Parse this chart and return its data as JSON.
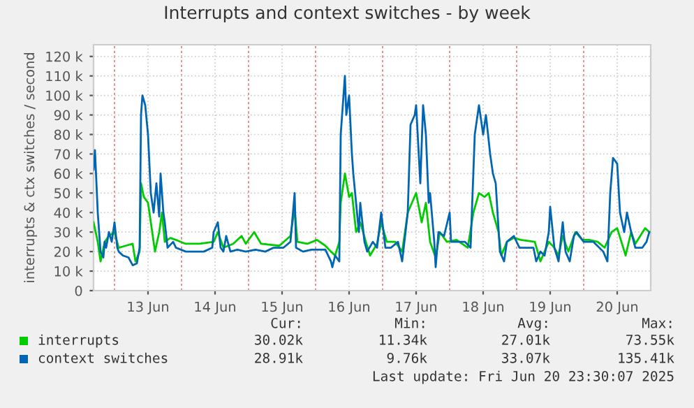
{
  "chart_data": {
    "type": "line",
    "title": "Interrupts and context switches - by week",
    "ylabel": "interrupts & ctx switches / second",
    "legend": "bottom",
    "grid": true,
    "marker": "none",
    "line_style": "solid",
    "xlim": [
      "2025-06-12T16:30",
      "2025-06-21T00:00"
    ],
    "xticks": [
      {
        "value": "2025-06-13T00:00",
        "label": null
      },
      {
        "value": "2025-06-13T12:00",
        "label": "13 Jun"
      },
      {
        "value": "2025-06-14T00:00",
        "label": null
      },
      {
        "value": "2025-06-14T12:00",
        "label": "14 Jun"
      },
      {
        "value": "2025-06-15T00:00",
        "label": null
      },
      {
        "value": "2025-06-15T12:00",
        "label": "15 Jun"
      },
      {
        "value": "2025-06-16T00:00",
        "label": null
      },
      {
        "value": "2025-06-16T12:00",
        "label": "16 Jun"
      },
      {
        "value": "2025-06-17T00:00",
        "label": null
      },
      {
        "value": "2025-06-17T12:00",
        "label": "17 Jun"
      },
      {
        "value": "2025-06-18T00:00",
        "label": null
      },
      {
        "value": "2025-06-18T12:00",
        "label": "18 Jun"
      },
      {
        "value": "2025-06-19T00:00",
        "label": null
      },
      {
        "value": "2025-06-19T12:00",
        "label": "19 Jun"
      },
      {
        "value": "2025-06-20T00:00",
        "label": null
      },
      {
        "value": "2025-06-20T12:00",
        "label": "20 Jun"
      },
      {
        "value": "2025-06-21T00:00",
        "label": null
      }
    ],
    "ylim": [
      0,
      126000
    ],
    "yticks": [
      0,
      {
        "value": 10000,
        "label": "10 k"
      },
      {
        "value": 20000,
        "label": "20 k"
      },
      {
        "value": 30000,
        "label": "30 k"
      },
      {
        "value": 40000,
        "label": "40 k"
      },
      {
        "value": 50000,
        "label": "50 k"
      },
      {
        "value": 60000,
        "label": "60 k"
      },
      {
        "value": 70000,
        "label": "70 k"
      },
      {
        "value": 80000,
        "label": "80 k"
      },
      {
        "value": 90000,
        "label": "90 k"
      },
      {
        "value": 100000,
        "label": "100 k"
      },
      {
        "value": 110000,
        "label": "110 k"
      },
      {
        "value": 120000,
        "label": "120 k"
      }
    ],
    "series": [
      {
        "name": "interrupts",
        "color": "#00cc00",
        "x": [
          "2025-06-12T16:30",
          "2025-06-12T18:00",
          "2025-06-12T19:00",
          "2025-06-12T20:30",
          "2025-06-12T22:00",
          "2025-06-13T00:00",
          "2025-06-13T01:30",
          "2025-06-13T04:00",
          "2025-06-13T06:30",
          "2025-06-13T07:30",
          "2025-06-13T09:00",
          "2025-06-13T09:30",
          "2025-06-13T10:30",
          "2025-06-13T12:00",
          "2025-06-13T13:00",
          "2025-06-13T14:30",
          "2025-06-13T16:00",
          "2025-06-13T17:00",
          "2025-06-13T18:00",
          "2025-06-13T20:00",
          "2025-06-13T22:00",
          "2025-06-14T01:30",
          "2025-06-14T06:30",
          "2025-06-14T11:30",
          "2025-06-14T13:00",
          "2025-06-14T15:00",
          "2025-06-14T18:30",
          "2025-06-14T21:30",
          "2025-06-14T23:00",
          "2025-06-15T02:00",
          "2025-06-15T04:30",
          "2025-06-15T11:00",
          "2025-06-15T15:00",
          "2025-06-15T16:30",
          "2025-06-15T17:30",
          "2025-06-15T21:00",
          "2025-06-16T00:30",
          "2025-06-16T03:30",
          "2025-06-16T05:30",
          "2025-06-16T07:00",
          "2025-06-16T08:30",
          "2025-06-16T09:00",
          "2025-06-16T10:30",
          "2025-06-16T12:00",
          "2025-06-16T13:00",
          "2025-06-16T14:30",
          "2025-06-16T16:00",
          "2025-06-16T18:00",
          "2025-06-16T19:30",
          "2025-06-16T22:00",
          "2025-06-16T23:30",
          "2025-06-17T01:30",
          "2025-06-17T04:30",
          "2025-06-17T07:00",
          "2025-06-17T09:00",
          "2025-06-17T10:30",
          "2025-06-17T12:00",
          "2025-06-17T14:00",
          "2025-06-17T15:30",
          "2025-06-17T17:00",
          "2025-06-17T19:00",
          "2025-06-17T20:30",
          "2025-06-17T23:00",
          "2025-06-18T02:30",
          "2025-06-18T06:30",
          "2025-06-18T08:30",
          "2025-06-18T10:30",
          "2025-06-18T12:30",
          "2025-06-18T14:00",
          "2025-06-18T15:30",
          "2025-06-18T17:30",
          "2025-06-18T18:30",
          "2025-06-18T20:30",
          "2025-06-18T23:00",
          "2025-06-19T01:30",
          "2025-06-19T06:30",
          "2025-06-19T08:30",
          "2025-06-19T10:00",
          "2025-06-19T11:30",
          "2025-06-19T13:30",
          "2025-06-19T15:00",
          "2025-06-19T16:30",
          "2025-06-19T18:30",
          "2025-06-19T21:00",
          "2025-06-19T23:30",
          "2025-06-20T02:00",
          "2025-06-20T05:00",
          "2025-06-20T07:30",
          "2025-06-20T10:00",
          "2025-06-20T12:00",
          "2025-06-20T13:30",
          "2025-06-20T15:00",
          "2025-06-20T17:00",
          "2025-06-20T18:30",
          "2025-06-20T22:00",
          "2025-06-20T23:30"
        ],
        "values": [
          35000,
          25000,
          15000,
          25000,
          28000,
          30000,
          22000,
          23000,
          24000,
          15000,
          20000,
          55000,
          48000,
          45000,
          35000,
          20000,
          30000,
          40000,
          25000,
          27000,
          26000,
          24000,
          24000,
          25000,
          30000,
          22000,
          24000,
          28000,
          24000,
          30000,
          24000,
          23000,
          28000,
          42000,
          25000,
          24000,
          26000,
          23000,
          20000,
          18000,
          25000,
          45000,
          60000,
          48000,
          50000,
          30000,
          35000,
          25000,
          18000,
          24000,
          35000,
          25000,
          25000,
          20000,
          40000,
          45000,
          50000,
          35000,
          45000,
          25000,
          17000,
          30000,
          25000,
          26000,
          22000,
          40000,
          50000,
          48000,
          50000,
          40000,
          30000,
          18000,
          25000,
          27000,
          26000,
          25000,
          15000,
          20000,
          25000,
          22000,
          18000,
          28000,
          20000,
          30000,
          26000,
          26000,
          25000,
          22000,
          30000,
          32000,
          25000,
          18000,
          30000,
          24000,
          32000,
          30000
        ]
      },
      {
        "name": "context switches",
        "color": "#0066b3",
        "x": [
          "2025-06-12T16:30",
          "2025-06-12T17:00",
          "2025-06-12T18:00",
          "2025-06-12T19:00",
          "2025-06-12T20:00",
          "2025-06-12T20:30",
          "2025-06-12T21:00",
          "2025-06-12T22:00",
          "2025-06-12T23:00",
          "2025-06-13T00:00",
          "2025-06-13T01:00",
          "2025-06-13T01:30",
          "2025-06-13T03:00",
          "2025-06-13T05:00",
          "2025-06-13T06:30",
          "2025-06-13T08:00",
          "2025-06-13T09:00",
          "2025-06-13T09:30",
          "2025-06-13T10:00",
          "2025-06-13T11:00",
          "2025-06-13T12:00",
          "2025-06-13T13:00",
          "2025-06-13T14:00",
          "2025-06-13T15:00",
          "2025-06-13T16:00",
          "2025-06-13T16:30",
          "2025-06-13T17:30",
          "2025-06-13T18:00",
          "2025-06-13T19:00",
          "2025-06-13T21:00",
          "2025-06-13T22:00",
          "2025-06-14T01:30",
          "2025-06-14T05:00",
          "2025-06-14T08:00",
          "2025-06-14T11:00",
          "2025-06-14T11:30",
          "2025-06-14T13:00",
          "2025-06-14T14:00",
          "2025-06-14T15:00",
          "2025-06-14T16:00",
          "2025-06-14T17:30",
          "2025-06-14T20:00",
          "2025-06-14T23:00",
          "2025-06-15T02:30",
          "2025-06-15T06:00",
          "2025-06-15T09:00",
          "2025-06-15T12:30",
          "2025-06-15T15:00",
          "2025-06-15T16:30",
          "2025-06-15T17:00",
          "2025-06-15T19:30",
          "2025-06-15T22:30",
          "2025-06-16T03:30",
          "2025-06-16T05:30",
          "2025-06-16T06:00",
          "2025-06-16T07:00",
          "2025-06-16T08:30",
          "2025-06-16T09:00",
          "2025-06-16T10:30",
          "2025-06-16T11:00",
          "2025-06-16T12:00",
          "2025-06-16T13:00",
          "2025-06-16T13:30",
          "2025-06-16T14:30",
          "2025-06-16T15:30",
          "2025-06-16T16:00",
          "2025-06-16T17:30",
          "2025-06-16T18:30",
          "2025-06-16T20:30",
          "2025-06-16T22:00",
          "2025-06-16T23:30",
          "2025-06-17T01:00",
          "2025-06-17T03:00",
          "2025-06-17T05:30",
          "2025-06-17T07:00",
          "2025-06-17T09:00",
          "2025-06-17T10:00",
          "2025-06-17T11:30",
          "2025-06-17T12:00",
          "2025-06-17T13:30",
          "2025-06-17T14:30",
          "2025-06-17T15:30",
          "2025-06-17T16:30",
          "2025-06-17T17:00",
          "2025-06-17T18:30",
          "2025-06-17T19:00",
          "2025-06-17T20:00",
          "2025-06-17T22:00",
          "2025-06-18T00:00",
          "2025-06-18T00:30",
          "2025-06-18T03:00",
          "2025-06-18T05:30",
          "2025-06-18T07:30",
          "2025-06-18T09:00",
          "2025-06-18T10:30",
          "2025-06-18T12:00",
          "2025-06-18T13:00",
          "2025-06-18T14:30",
          "2025-06-18T15:30",
          "2025-06-18T16:30",
          "2025-06-18T18:00",
          "2025-06-18T19:30",
          "2025-06-18T20:30",
          "2025-06-18T23:00",
          "2025-06-19T01:00",
          "2025-06-19T03:30",
          "2025-06-19T06:00",
          "2025-06-19T07:00",
          "2025-06-19T08:30",
          "2025-06-19T10:00",
          "2025-06-19T11:30",
          "2025-06-19T12:00",
          "2025-06-19T13:30",
          "2025-06-19T15:00",
          "2025-06-19T16:30",
          "2025-06-19T17:30",
          "2025-06-19T19:00",
          "2025-06-19T20:30",
          "2025-06-19T21:30",
          "2025-06-20T00:00",
          "2025-06-20T03:30",
          "2025-06-20T07:00",
          "2025-06-20T08:30",
          "2025-06-20T09:30",
          "2025-06-20T10:30",
          "2025-06-20T12:00",
          "2025-06-20T13:00",
          "2025-06-20T14:30",
          "2025-06-20T15:30",
          "2025-06-20T17:00",
          "2025-06-20T18:30",
          "2025-06-20T21:00",
          "2025-06-20T22:30",
          "2025-06-20T23:30"
        ],
        "values": [
          62000,
          72000,
          40000,
          20000,
          17000,
          25000,
          22000,
          30000,
          25000,
          35000,
          22000,
          20000,
          18000,
          17000,
          13000,
          14000,
          22000,
          90000,
          100000,
          95000,
          80000,
          50000,
          40000,
          55000,
          38000,
          60000,
          40000,
          35000,
          22000,
          25000,
          22000,
          20000,
          20000,
          20000,
          22000,
          30000,
          35000,
          22000,
          20000,
          28000,
          20000,
          21000,
          20000,
          21000,
          20000,
          22000,
          22000,
          25000,
          50000,
          22000,
          20000,
          21000,
          21000,
          15000,
          12000,
          18000,
          15000,
          80000,
          110000,
          90000,
          100000,
          70000,
          60000,
          45000,
          30000,
          45000,
          25000,
          20000,
          25000,
          22000,
          40000,
          22000,
          22000,
          25000,
          15000,
          40000,
          85000,
          90000,
          95000,
          55000,
          95000,
          80000,
          45000,
          50000,
          25000,
          12000,
          30000,
          28000,
          40000,
          25000,
          25000,
          25000,
          22000,
          80000,
          95000,
          80000,
          90000,
          70000,
          60000,
          55000,
          20000,
          15000,
          25000,
          28000,
          22000,
          22000,
          22000,
          15000,
          20000,
          18000,
          30000,
          43000,
          22000,
          15000,
          35000,
          20000,
          15000,
          28000,
          30000,
          25000,
          25000,
          20000,
          15000,
          50000,
          68000,
          65000,
          40000,
          30000,
          40000,
          30000,
          22000,
          22000,
          25000,
          30000
        ]
      }
    ],
    "annotations": [
      "Cur:",
      "Min:",
      "Avg:",
      "Max:",
      "30.02k",
      "11.34k",
      "27.01k",
      "73.55k",
      "28.91k",
      "9.76k",
      "33.07k",
      "135.41k",
      "Last update: Fri Jun 20 23:30:07 2025"
    ]
  }
}
